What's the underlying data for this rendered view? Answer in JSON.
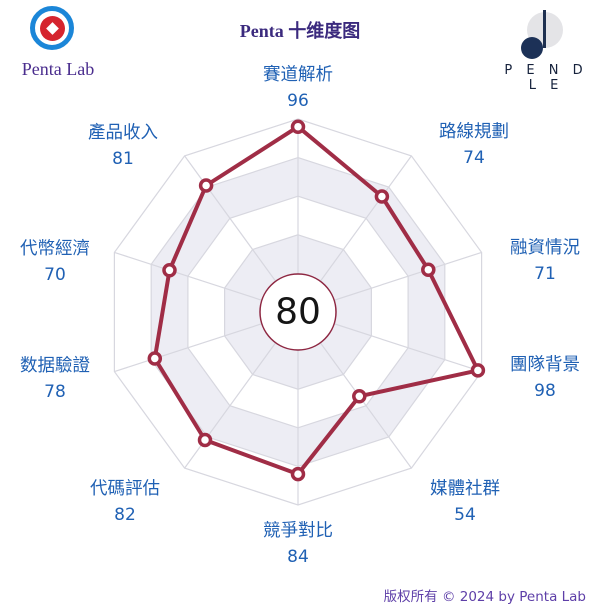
{
  "header": {
    "logo_text": "Penta Lab",
    "title": "Penta 十维度图",
    "brand": "P E N D L E"
  },
  "footer": {
    "copyright": "版权所有 © 2024 by Penta Lab"
  },
  "chart_data": {
    "type": "radar",
    "title": "Penta 十维度图",
    "categories": [
      "賽道解析",
      "路線規劃",
      "融資情況",
      "團隊背景",
      "媒體社群",
      "競爭對比",
      "代碼評估",
      "数据驗證",
      "代幣經濟",
      "產品收入"
    ],
    "values": [
      96,
      74,
      71,
      98,
      54,
      84,
      82,
      78,
      70,
      81
    ],
    "center_label": "80",
    "axis_max": 100,
    "rings": 5,
    "grid": true,
    "legend": "none",
    "colors": {
      "line": "#a02d46",
      "marker_fill": "#ffffff",
      "grid": "#d7d7df",
      "band": "#ededf4",
      "band_alt": "#ffffff",
      "label": "#2061b4",
      "center_ring": "#8e2742",
      "center_text": "#151515"
    }
  }
}
